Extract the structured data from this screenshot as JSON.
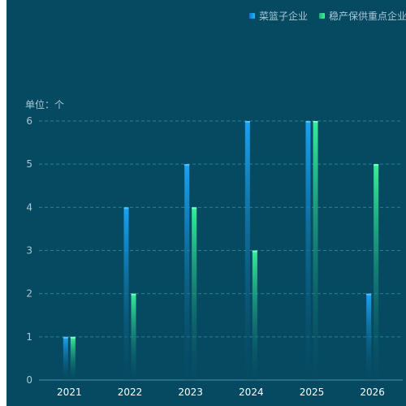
{
  "chart_data": {
    "type": "bar",
    "categories": [
      "2021",
      "2022",
      "2023",
      "2024",
      "2025",
      "2026"
    ],
    "series": [
      {
        "name": "菜篮子企业",
        "values": [
          1,
          4,
          5,
          6,
          6,
          2
        ],
        "color": "#1a9cf0"
      },
      {
        "name": "稳产保供重点企业",
        "values": [
          1,
          2,
          4,
          3,
          6,
          5
        ],
        "color": "#2ee88e"
      }
    ],
    "ylabel": "单位：个",
    "yticks": [
      "0",
      "1",
      "2",
      "3",
      "4",
      "5",
      "6"
    ],
    "ylim": [
      0,
      6
    ],
    "grid": true,
    "legend_position": "top-right"
  },
  "colors": {
    "background": "#064a62",
    "axis_text": "#a9c7d6",
    "category_text": "#ffffff",
    "grid": "#2a7f98"
  }
}
